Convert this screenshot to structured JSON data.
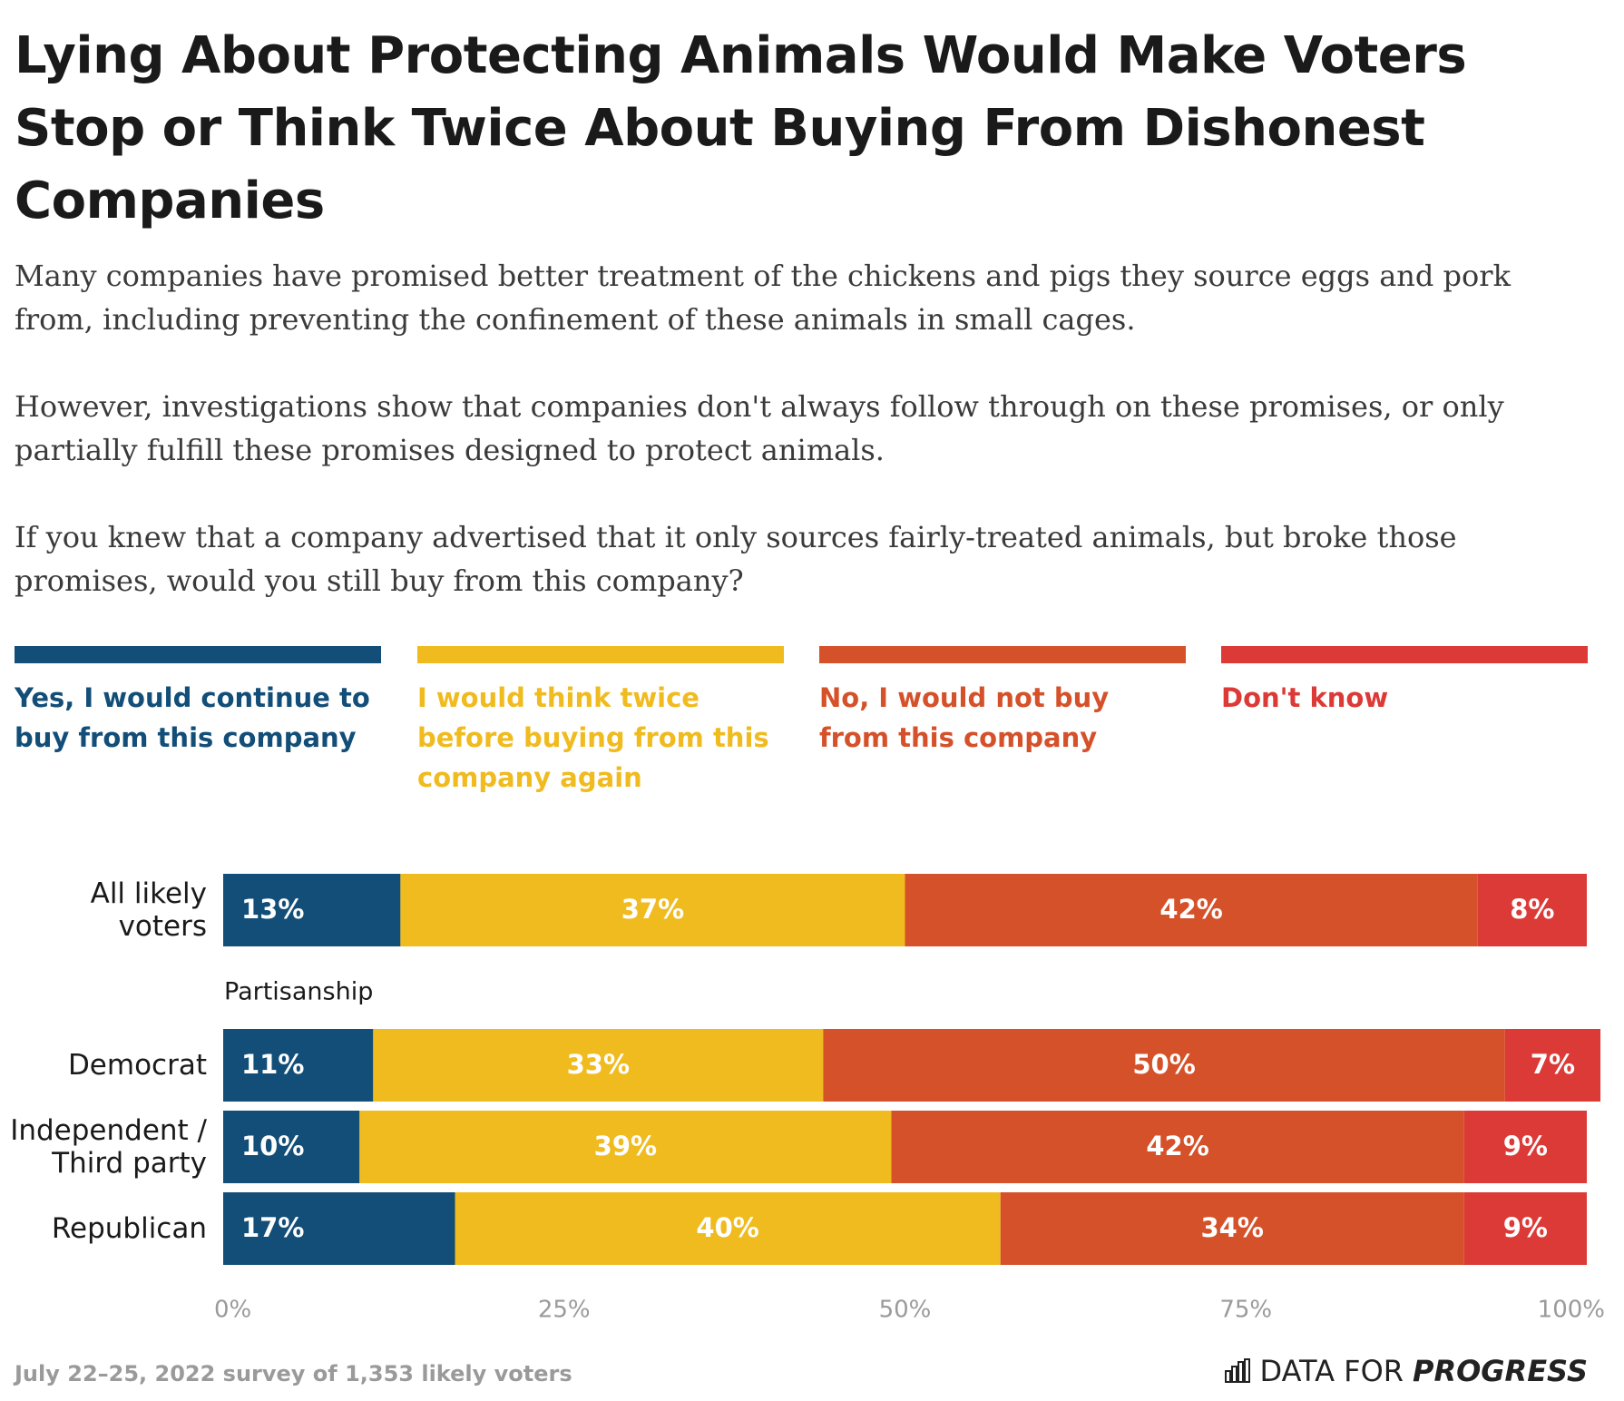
{
  "chart_data": {
    "type": "stacked_bar_horizontal",
    "title": "Lying About Protecting Animals Would Make Voters Stop or Think Twice About Buying From Dishonest Companies",
    "subtitle": [
      "Many companies have promised better treatment of the chickens and pigs they source eggs and pork from, including preventing the confinement of these animals in small cages.",
      "However, investigations show that companies don't always follow through on these promises, or only partially fulfill these promises designed to protect animals.",
      "If you knew that a company advertised that it only sources fairly-treated animals, but broke those promises, would you still buy from this company?"
    ],
    "categories": [
      "All likely voters",
      "Democrat",
      "Independent / Third party",
      "Republican"
    ],
    "annotation": "Partisanship",
    "series": [
      {
        "name": "Yes, I would continue to buy from this company",
        "color": "#124e78",
        "values": [
          13,
          11,
          10,
          17
        ],
        "value_labels": [
          "13%",
          "11%",
          "10%",
          "17%"
        ]
      },
      {
        "name": "I would think twice before buying from this company again",
        "color": "#f0bb1f",
        "values": [
          37,
          33,
          39,
          40
        ],
        "value_labels": [
          "37%",
          "33%",
          "39%",
          "40%"
        ]
      },
      {
        "name": "No, I would not buy from this company",
        "color": "#d5512a",
        "values": [
          42,
          50,
          42,
          34
        ],
        "value_labels": [
          "42%",
          "50%",
          "42%",
          "34%"
        ]
      },
      {
        "name": "Don't know",
        "color": "#dc3a36",
        "values": [
          8,
          7,
          9,
          9
        ],
        "value_labels": [
          "8%",
          "7%",
          "9%",
          "9%"
        ]
      }
    ],
    "xlim": [
      0,
      100
    ],
    "xticks": [
      {
        "value": 0,
        "label": "0%"
      },
      {
        "value": 25,
        "label": "25%"
      },
      {
        "value": 50,
        "label": "50%"
      },
      {
        "value": 75,
        "label": "75%"
      },
      {
        "value": 100,
        "label": "100%"
      }
    ],
    "source": "July 22–25, 2022 survey of 1,353 likely voters",
    "brand": [
      "DATA FOR",
      "PROGRESS"
    ]
  }
}
